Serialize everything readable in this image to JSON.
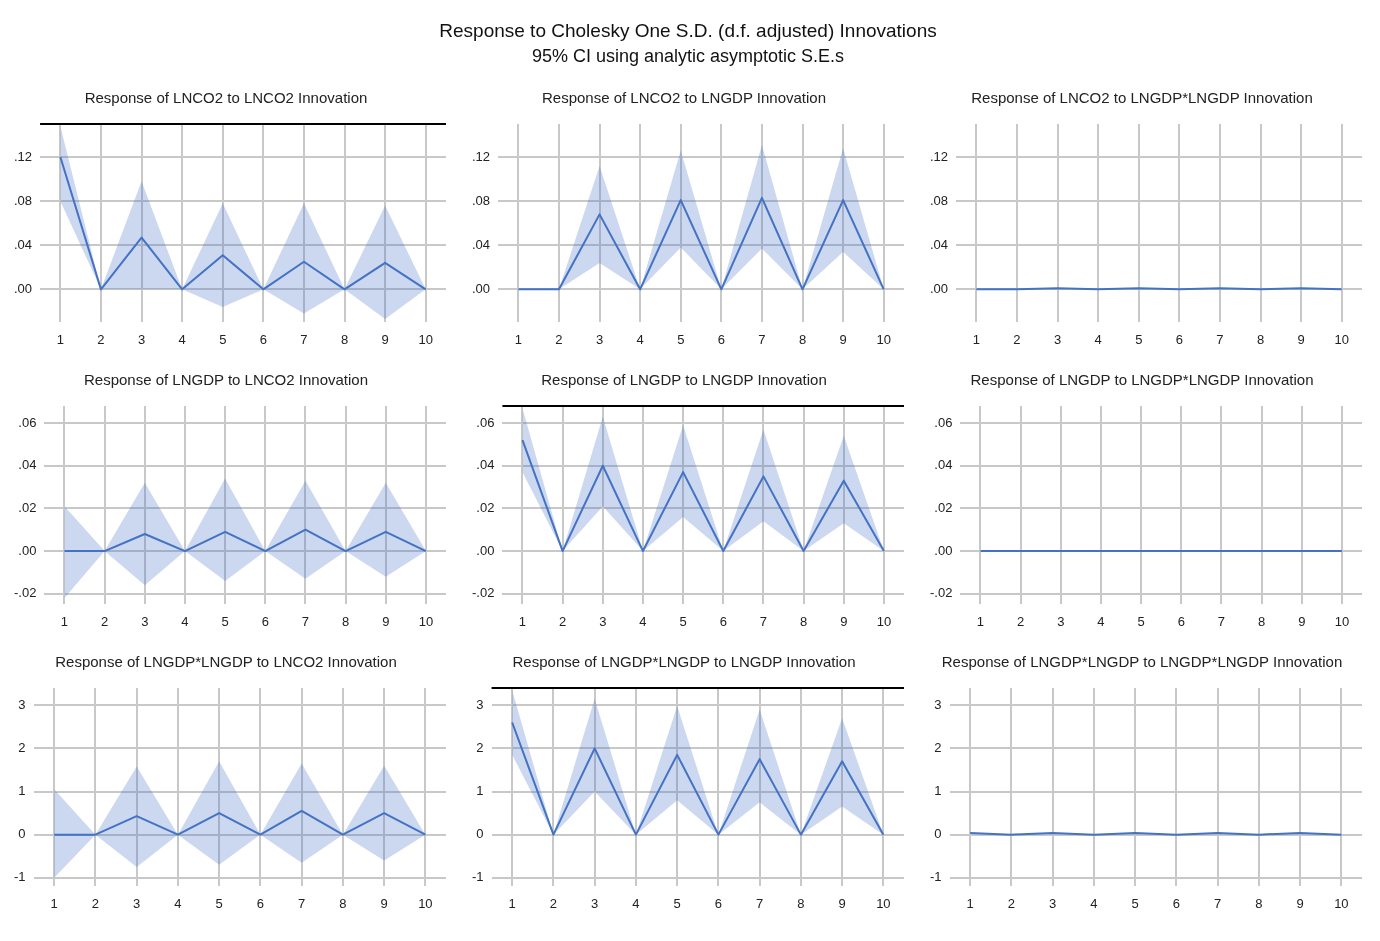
{
  "chart_data": [
    {
      "type": "other",
      "title": "Response to Cholesky One S.D. (d.f. adjusted) Innovations",
      "subtitle": "95% CI using analytic asymptotic S.E.s"
    },
    {
      "type": "line",
      "title": "Response of LNCO2 to LNCO2 Innovation",
      "categories": [
        "1",
        "2",
        "3",
        "4",
        "5",
        "6",
        "7",
        "8",
        "9",
        "10"
      ],
      "grid": true,
      "ylim": [
        -0.03,
        0.15
      ],
      "yticks": [
        {
          "value": 0,
          "label": ".00"
        },
        {
          "value": 0.04,
          "label": ".04"
        },
        {
          "value": 0.08,
          "label": ".08"
        },
        {
          "value": 0.12,
          "label": ".12"
        }
      ],
      "ref_lines": [
        {
          "axis": "y",
          "value": 0.15,
          "color": "#000000"
        }
      ],
      "series": [
        {
          "color": "#4472c4",
          "values": [
            0.12,
            0,
            0.047,
            0,
            0.031,
            0,
            0.025,
            0,
            0.024,
            0
          ],
          "lower": [
            0.08,
            0,
            0,
            0,
            -0.016,
            0,
            -0.022,
            0,
            -0.027,
            0
          ],
          "upper": [
            0.148,
            0,
            0.098,
            0,
            0.078,
            0,
            0.078,
            0,
            0.076,
            0
          ]
        }
      ]
    },
    {
      "type": "line",
      "title": "Response of LNCO2 to LNGDP Innovation",
      "categories": [
        "1",
        "2",
        "3",
        "4",
        "5",
        "6",
        "7",
        "8",
        "9",
        "10"
      ],
      "grid": true,
      "ylim": [
        -0.03,
        0.15
      ],
      "yticks": [
        {
          "value": 0,
          "label": ".00"
        },
        {
          "value": 0.04,
          "label": ".04"
        },
        {
          "value": 0.08,
          "label": ".08"
        },
        {
          "value": 0.12,
          "label": ".12"
        }
      ],
      "series": [
        {
          "color": "#4472c4",
          "values": [
            0,
            0,
            0.068,
            0,
            0.081,
            0,
            0.083,
            0,
            0.081,
            0
          ],
          "lower": [
            0,
            0,
            0.024,
            0,
            0.038,
            0,
            0.037,
            0,
            0.034,
            0
          ],
          "upper": [
            0,
            0,
            0.112,
            0,
            0.126,
            0,
            0.131,
            0,
            0.128,
            0
          ]
        }
      ]
    },
    {
      "type": "line",
      "title": "Response of LNCO2 to LNGDP*LNGDP Innovation",
      "categories": [
        "1",
        "2",
        "3",
        "4",
        "5",
        "6",
        "7",
        "8",
        "9",
        "10"
      ],
      "grid": true,
      "ylim": [
        -0.03,
        0.15
      ],
      "yticks": [
        {
          "value": 0,
          "label": ".00"
        },
        {
          "value": 0.04,
          "label": ".04"
        },
        {
          "value": 0.08,
          "label": ".08"
        },
        {
          "value": 0.12,
          "label": ".12"
        }
      ],
      "series": [
        {
          "color": "#4472c4",
          "values": [
            0,
            0,
            0.001,
            0,
            0.001,
            0,
            0.001,
            0,
            0.001,
            0
          ]
        }
      ]
    },
    {
      "type": "line",
      "title": "Response of LNGDP to LNCO2 Innovation",
      "categories": [
        "1",
        "2",
        "3",
        "4",
        "5",
        "6",
        "7",
        "8",
        "9",
        "10"
      ],
      "grid": true,
      "ylim": [
        -0.025,
        0.068
      ],
      "yticks": [
        {
          "value": -0.02,
          "label": "-.02"
        },
        {
          "value": 0,
          "label": ".00"
        },
        {
          "value": 0.02,
          "label": ".02"
        },
        {
          "value": 0.04,
          "label": ".04"
        },
        {
          "value": 0.06,
          "label": ".06"
        }
      ],
      "series": [
        {
          "color": "#4472c4",
          "values": [
            0,
            0,
            0.008,
            0,
            0.009,
            0,
            0.01,
            0,
            0.009,
            0
          ],
          "lower": [
            -0.022,
            0,
            -0.016,
            0,
            -0.014,
            0,
            -0.013,
            0,
            -0.012,
            0
          ],
          "upper": [
            0.021,
            0,
            0.032,
            0,
            0.034,
            0,
            0.033,
            0,
            0.032,
            0
          ]
        }
      ]
    },
    {
      "type": "line",
      "title": "Response of LNGDP to LNGDP Innovation",
      "categories": [
        "1",
        "2",
        "3",
        "4",
        "5",
        "6",
        "7",
        "8",
        "9",
        "10"
      ],
      "grid": true,
      "ylim": [
        -0.025,
        0.068
      ],
      "yticks": [
        {
          "value": -0.02,
          "label": "-.02"
        },
        {
          "value": 0,
          "label": ".00"
        },
        {
          "value": 0.02,
          "label": ".02"
        },
        {
          "value": 0.04,
          "label": ".04"
        },
        {
          "value": 0.06,
          "label": ".06"
        }
      ],
      "ref_lines": [
        {
          "axis": "y",
          "value": 0.068,
          "color": "#000000"
        }
      ],
      "series": [
        {
          "color": "#4472c4",
          "values": [
            0.052,
            0,
            0.04,
            0,
            0.037,
            0,
            0.035,
            0,
            0.033,
            0
          ],
          "lower": [
            0.037,
            0,
            0.021,
            0,
            0.016,
            0,
            0.014,
            0,
            0.013,
            0
          ],
          "upper": [
            0.067,
            0,
            0.063,
            0,
            0.059,
            0,
            0.057,
            0,
            0.054,
            0
          ]
        }
      ]
    },
    {
      "type": "line",
      "title": "Response of LNGDP to LNGDP*LNGDP Innovation",
      "categories": [
        "1",
        "2",
        "3",
        "4",
        "5",
        "6",
        "7",
        "8",
        "9",
        "10"
      ],
      "grid": true,
      "ylim": [
        -0.025,
        0.068
      ],
      "yticks": [
        {
          "value": -0.02,
          "label": "-.02"
        },
        {
          "value": 0,
          "label": ".00"
        },
        {
          "value": 0.02,
          "label": ".02"
        },
        {
          "value": 0.04,
          "label": ".04"
        },
        {
          "value": 0.06,
          "label": ".06"
        }
      ],
      "series": [
        {
          "color": "#4472c4",
          "values": [
            0,
            0,
            0,
            0,
            0,
            0,
            0,
            0,
            0,
            0
          ]
        }
      ]
    },
    {
      "type": "line",
      "title": "Response of LNGDP*LNGDP to LNCO2 Innovation",
      "categories": [
        "1",
        "2",
        "3",
        "4",
        "5",
        "6",
        "7",
        "8",
        "9",
        "10"
      ],
      "grid": true,
      "ylim": [
        -1.2,
        3.4
      ],
      "yticks": [
        -1,
        0,
        1,
        2,
        3
      ],
      "series": [
        {
          "color": "#4472c4",
          "values": [
            0,
            0,
            0.43,
            0,
            0.5,
            0,
            0.55,
            0,
            0.5,
            0
          ],
          "lower": [
            -1,
            0,
            -0.75,
            0,
            -0.7,
            0,
            -0.65,
            0,
            -0.6,
            0
          ],
          "upper": [
            1.05,
            0,
            1.58,
            0,
            1.7,
            0,
            1.65,
            0,
            1.6,
            0
          ]
        }
      ]
    },
    {
      "type": "line",
      "title": "Response of LNGDP*LNGDP to LNGDP Innovation",
      "categories": [
        "1",
        "2",
        "3",
        "4",
        "5",
        "6",
        "7",
        "8",
        "9",
        "10"
      ],
      "grid": true,
      "ylim": [
        -1.2,
        3.4
      ],
      "yticks": [
        -1,
        0,
        1,
        2,
        3
      ],
      "ref_lines": [
        {
          "axis": "y",
          "value": 3.4,
          "color": "#000000"
        }
      ],
      "series": [
        {
          "color": "#4472c4",
          "values": [
            2.6,
            0,
            2,
            0,
            1.85,
            0,
            1.75,
            0,
            1.7,
            0
          ],
          "lower": [
            1.85,
            0,
            1,
            0,
            0.8,
            0,
            0.75,
            0,
            0.65,
            0
          ],
          "upper": [
            3.35,
            0,
            3.15,
            0,
            2.98,
            0,
            2.9,
            0,
            2.7,
            0
          ]
        }
      ]
    },
    {
      "type": "line",
      "title": "Response of LNGDP*LNGDP to LNGDP*LNGDP Innovation",
      "categories": [
        "1",
        "2",
        "3",
        "4",
        "5",
        "6",
        "7",
        "8",
        "9",
        "10"
      ],
      "grid": true,
      "ylim": [
        -1.2,
        3.4
      ],
      "yticks": [
        -1,
        0,
        1,
        2,
        3
      ],
      "series": [
        {
          "color": "#4472c4",
          "values": [
            0.04,
            0,
            0.04,
            0,
            0.04,
            0,
            0.04,
            0,
            0.04,
            0
          ]
        }
      ]
    }
  ]
}
